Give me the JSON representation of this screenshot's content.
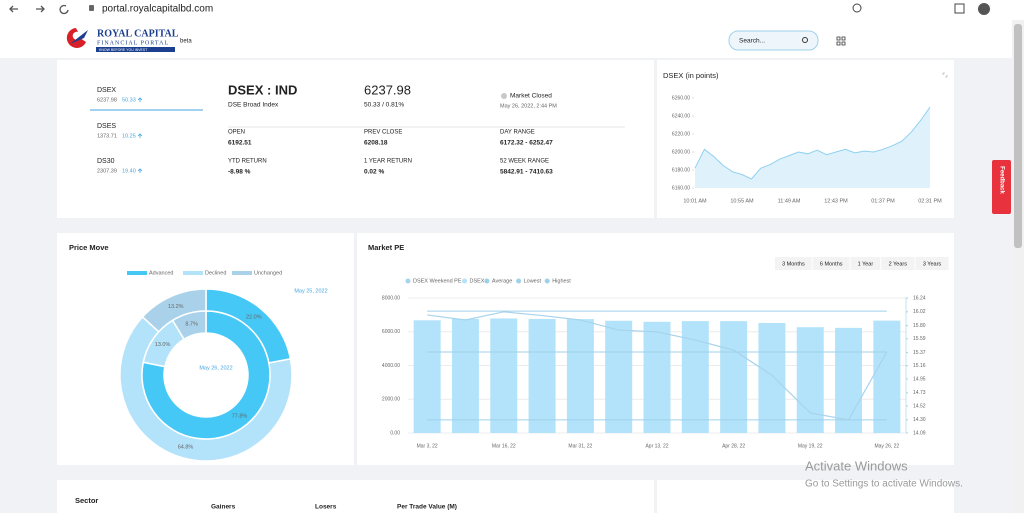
{
  "browser": {
    "url": "portal.royalcapitalbd.com"
  },
  "header": {
    "logo_title": "ROYAL CAPITAL",
    "logo_subtitle": "FINANCIAL PORTAL",
    "logo_tagline": "KNOW BEFORE YOU INVEST",
    "badge": "beta",
    "search_placeholder": "Search..."
  },
  "indices": [
    {
      "name": "DSEX",
      "value": "6237.98",
      "change": "50.33"
    },
    {
      "name": "DSES",
      "value": "1373.71",
      "change": "10.25"
    },
    {
      "name": "DS30",
      "value": "2307.39",
      "change": "19.40"
    }
  ],
  "summary": {
    "title": "DSEX : IND",
    "subtitle": "DSE Broad Index",
    "price": "6237.98",
    "change": "50.33 / 0.81%",
    "status": "Market Closed",
    "timestamp": "May 26, 2022, 2:44 PM",
    "stats": [
      {
        "label": "OPEN",
        "value": "6192.51"
      },
      {
        "label": "PREV CLOSE",
        "value": "6208.18"
      },
      {
        "label": "DAY RANGE",
        "value": "6172.32 - 6252.47"
      },
      {
        "label": "YTD RETURN",
        "value": "-8.98 %"
      },
      {
        "label": "1 YEAR RETURN",
        "value": "0.02 %"
      },
      {
        "label": "52 WEEK RANGE",
        "value": "5842.91 - 7410.63"
      }
    ]
  },
  "dsex_chart": {
    "type": "line",
    "title": "DSEX (in points)",
    "color": "#8fd0f0",
    "categories": [
      "10:01 AM",
      null,
      null,
      null,
      null,
      "10:55 AM",
      null,
      null,
      null,
      null,
      "11:49 AM",
      null,
      null,
      null,
      null,
      "12:43 PM",
      null,
      null,
      null,
      null,
      "01:37 PM",
      null,
      null,
      null,
      null,
      "02:31 PM"
    ],
    "values": [
      6182,
      6203,
      6195,
      6185,
      6178,
      6175,
      6170,
      6182,
      6186,
      6192,
      6196,
      6200,
      6198,
      6202,
      6197,
      6200,
      6203,
      6199,
      6201,
      6200,
      6203,
      6207,
      6212,
      6222,
      6235,
      6250
    ],
    "ylim": [
      6160,
      6260
    ],
    "yticks": [
      {
        "value": 6160,
        "label": "6160.00"
      },
      {
        "value": 6180,
        "label": "6180.00"
      },
      {
        "value": 6200,
        "label": "6200.00"
      },
      {
        "value": 6220,
        "label": "6220.00"
      },
      {
        "value": 6240,
        "label": "6240.00"
      },
      {
        "value": 6260,
        "label": "6260.00"
      }
    ]
  },
  "price_move": {
    "type": "pie",
    "title": "Price Move",
    "categories": [
      "Advanced",
      "Declined",
      "Unchanged"
    ],
    "colors": [
      "#45c8f5",
      "#b3e2fb",
      "#a9d2ea"
    ],
    "series": [
      {
        "name": "May 25, 2022",
        "values": [
          22.0,
          64.8,
          13.2
        ],
        "value_labels": [
          "22.0%",
          "64.8%",
          "13.2%"
        ]
      },
      {
        "name": "May 26, 2022",
        "values": [
          77.8,
          13.0,
          8.7
        ],
        "value_labels": [
          "77.8%",
          "13.0%",
          "8.7%"
        ]
      }
    ]
  },
  "market_pe": {
    "type": "bar",
    "title": "Market PE",
    "ranges": [
      "3 Months",
      "6 Months",
      "1 Year",
      "2 Years",
      "3 Years"
    ],
    "categories": [
      "Mar 3, 22",
      null,
      "Mar 16, 22",
      null,
      "Mar 31, 22",
      null,
      "Apr 13, 22",
      null,
      "Apr 28, 22",
      null,
      "May 19, 22",
      null,
      "May 26, 22"
    ],
    "series": [
      {
        "name": "DSEX Weekend PE",
        "color": "#a7d3ec",
        "axis": "y2",
        "values": [
          15.97,
          15.89,
          16.02,
          15.96,
          15.89,
          15.73,
          15.7,
          15.57,
          15.41,
          15.01,
          14.41,
          14.3,
          15.38
        ]
      },
      {
        "name": "DSEX",
        "color": "#b3e3fa",
        "values": [
          6680,
          6760,
          6790,
          6760,
          6750,
          6650,
          6590,
          6630,
          6630,
          6520,
          6270,
          6230,
          6660
        ]
      }
    ],
    "reference_lines": [
      {
        "name": "Average",
        "value": 15.38,
        "color": "#9fd0ea"
      },
      {
        "name": "Lowest",
        "value": 14.3,
        "color": "#9fd0ea"
      },
      {
        "name": "Highest",
        "value": 16.03,
        "color": "#9fd0ea"
      }
    ],
    "ylim": [
      0,
      8000
    ],
    "yticks": [
      {
        "value": 0,
        "label": "0.00"
      },
      {
        "value": 2000,
        "label": "2000.00"
      },
      {
        "value": 4000,
        "label": "4000.00"
      },
      {
        "value": 6000,
        "label": "6000.00"
      },
      {
        "value": 8000,
        "label": "8000.00"
      }
    ],
    "y2lim": [
      14.09,
      16.24
    ],
    "y2ticks": [
      14.09,
      {
        "value": 14.3,
        "label": "14.30"
      },
      14.52,
      14.73,
      14.95,
      15.16,
      15.37,
      15.59,
      {
        "value": 15.8,
        "label": "15.80"
      },
      16.02,
      16.24
    ]
  },
  "bottom": {
    "sector": "Sector",
    "columns": [
      "Gainers",
      "Losers",
      "Per Trade Value (M)"
    ]
  },
  "feedback": "Feedback",
  "watermark": {
    "title": "Activate Windows",
    "subtitle": "Go to Settings to activate Windows."
  }
}
